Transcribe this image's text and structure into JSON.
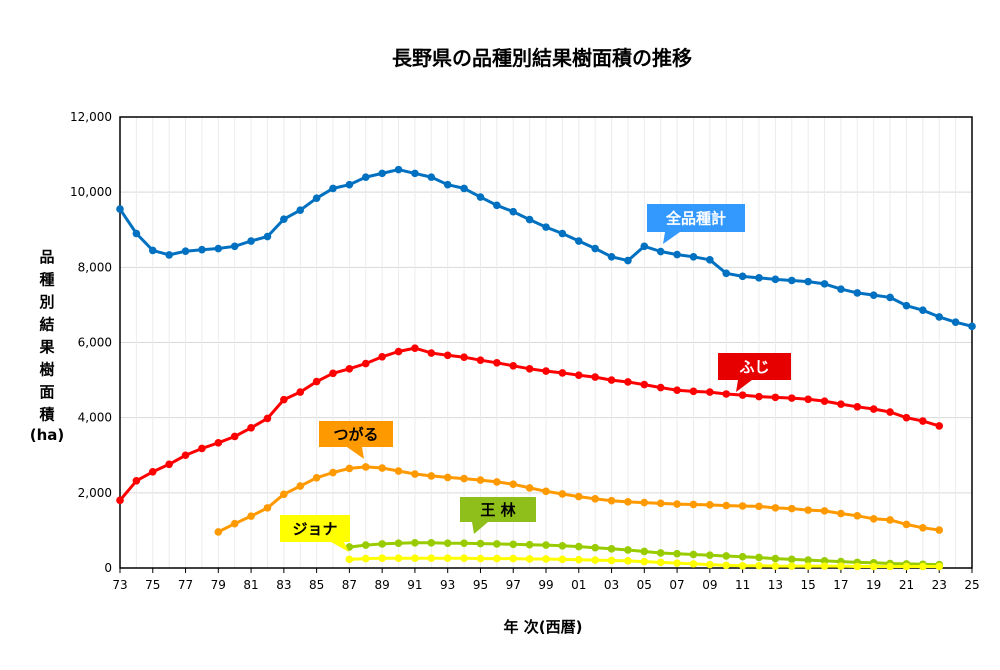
{
  "chart_data": {
    "type": "line",
    "title": "長野県の品種別結果樹面積の推移",
    "xlabel": "年 次(西暦)",
    "ylabel": "品種別結果樹面積",
    "ylabel_unit": "(ha)",
    "ylim": [
      0,
      12000
    ],
    "yticks": [
      "0",
      "2,000",
      "4,000",
      "6,000",
      "8,000",
      "10,000",
      "12,000"
    ],
    "xlim": [
      1973,
      2025
    ],
    "xtick_labels": [
      "73",
      "75",
      "77",
      "79",
      "81",
      "83",
      "85",
      "87",
      "89",
      "91",
      "93",
      "95",
      "97",
      "99",
      "01",
      "03",
      "05",
      "07",
      "09",
      "11",
      "13",
      "15",
      "17",
      "19",
      "21",
      "23",
      "25"
    ],
    "grid": true,
    "series": [
      {
        "name": "全品種計",
        "color": "#0070c0",
        "label_bg": "#3399ff",
        "x": [
          1973,
          1974,
          1975,
          1976,
          1977,
          1978,
          1979,
          1980,
          1981,
          1982,
          1983,
          1984,
          1985,
          1986,
          1987,
          1988,
          1989,
          1990,
          1991,
          1992,
          1993,
          1994,
          1995,
          1996,
          1997,
          1998,
          1999,
          2000,
          2001,
          2002,
          2003,
          2004,
          2005,
          2006,
          2007,
          2008,
          2009,
          2010,
          2011,
          2012,
          2013,
          2014,
          2015,
          2016,
          2017,
          2018,
          2019,
          2020,
          2021,
          2022,
          2023,
          2024,
          2025
        ],
        "values": [
          9550,
          8900,
          8450,
          8330,
          8430,
          8470,
          8500,
          8560,
          8700,
          8820,
          9280,
          9520,
          9840,
          10100,
          10200,
          10400,
          10500,
          10600,
          10500,
          10400,
          10200,
          10100,
          9870,
          9650,
          9480,
          9270,
          9070,
          8900,
          8700,
          8500,
          8280,
          8180,
          8560,
          8420,
          8340,
          8280,
          8200,
          7840,
          7760,
          7720,
          7680,
          7650,
          7620,
          7560,
          7420,
          7320,
          7260,
          7200,
          6980,
          6860,
          6680,
          6540,
          6430
        ]
      },
      {
        "name": "ふじ",
        "color": "#ff0000",
        "label_bg": "#e60000",
        "x": [
          1973,
          1974,
          1975,
          1976,
          1977,
          1978,
          1979,
          1980,
          1981,
          1982,
          1983,
          1984,
          1985,
          1986,
          1987,
          1988,
          1989,
          1990,
          1991,
          1992,
          1993,
          1994,
          1995,
          1996,
          1997,
          1998,
          1999,
          2000,
          2001,
          2002,
          2003,
          2004,
          2005,
          2006,
          2007,
          2008,
          2009,
          2010,
          2011,
          2012,
          2013,
          2014,
          2015,
          2016,
          2017,
          2018,
          2019,
          2020,
          2021,
          2022,
          2023
        ],
        "values": [
          1800,
          2320,
          2560,
          2760,
          3000,
          3180,
          3330,
          3500,
          3730,
          3980,
          4480,
          4680,
          4960,
          5180,
          5300,
          5440,
          5620,
          5760,
          5850,
          5720,
          5660,
          5610,
          5530,
          5460,
          5380,
          5300,
          5240,
          5190,
          5130,
          5080,
          5000,
          4950,
          4880,
          4800,
          4730,
          4700,
          4680,
          4630,
          4600,
          4560,
          4540,
          4520,
          4490,
          4440,
          4360,
          4290,
          4230,
          4150,
          4000,
          3910,
          3780
        ]
      },
      {
        "name": "つがる",
        "color": "#ff9900",
        "label_bg": "#ff9900",
        "x": [
          1979,
          1980,
          1981,
          1982,
          1983,
          1984,
          1985,
          1986,
          1987,
          1988,
          1989,
          1990,
          1991,
          1992,
          1993,
          1994,
          1995,
          1996,
          1997,
          1998,
          1999,
          2000,
          2001,
          2002,
          2003,
          2004,
          2005,
          2006,
          2007,
          2008,
          2009,
          2010,
          2011,
          2012,
          2013,
          2014,
          2015,
          2016,
          2017,
          2018,
          2019,
          2020,
          2021,
          2022,
          2023
        ],
        "values": [
          960,
          1180,
          1380,
          1600,
          1960,
          2180,
          2400,
          2540,
          2650,
          2690,
          2660,
          2580,
          2500,
          2450,
          2410,
          2380,
          2340,
          2290,
          2230,
          2130,
          2040,
          1970,
          1900,
          1840,
          1790,
          1760,
          1740,
          1720,
          1700,
          1690,
          1680,
          1660,
          1650,
          1640,
          1600,
          1580,
          1540,
          1520,
          1450,
          1390,
          1310,
          1280,
          1160,
          1070,
          1010
        ]
      },
      {
        "name": "王 林",
        "color": "#99cc00",
        "label_bg": "#8fbf1a",
        "x": [
          1987,
          1988,
          1989,
          1990,
          1991,
          1992,
          1993,
          1994,
          1995,
          1996,
          1997,
          1998,
          1999,
          2000,
          2001,
          2002,
          2003,
          2004,
          2005,
          2006,
          2007,
          2008,
          2009,
          2010,
          2011,
          2012,
          2013,
          2014,
          2015,
          2016,
          2017,
          2018,
          2019,
          2020,
          2021,
          2022,
          2023
        ],
        "values": [
          560,
          610,
          640,
          660,
          670,
          670,
          660,
          660,
          650,
          640,
          630,
          620,
          610,
          590,
          570,
          540,
          510,
          480,
          440,
          400,
          380,
          360,
          340,
          320,
          300,
          280,
          250,
          230,
          210,
          190,
          170,
          150,
          140,
          120,
          110,
          100,
          90
        ]
      },
      {
        "name": "ジョナ",
        "color": "#ffff00",
        "label_bg": "#ffff00",
        "x": [
          1987,
          1988,
          1989,
          1990,
          1991,
          1992,
          1993,
          1994,
          1995,
          1996,
          1997,
          1998,
          1999,
          2000,
          2001,
          2002,
          2003,
          2004,
          2005,
          2006,
          2007,
          2008,
          2009,
          2010,
          2011,
          2012,
          2013,
          2014,
          2015,
          2016,
          2017,
          2018,
          2019,
          2020,
          2021,
          2022,
          2023
        ],
        "values": [
          230,
          250,
          260,
          260,
          260,
          260,
          260,
          260,
          250,
          250,
          250,
          240,
          240,
          230,
          220,
          210,
          200,
          190,
          170,
          150,
          130,
          110,
          90,
          70,
          60,
          60,
          50,
          50,
          50,
          50,
          50,
          40,
          40,
          40,
          40,
          40,
          40
        ]
      }
    ]
  }
}
